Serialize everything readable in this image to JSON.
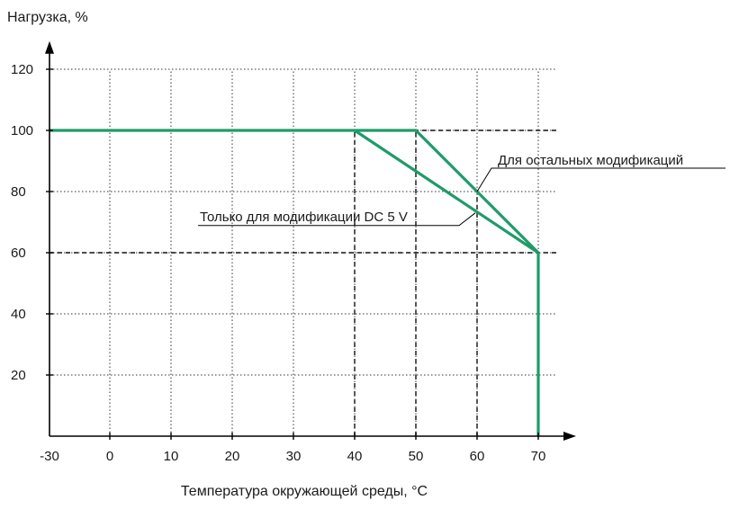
{
  "chart_data": {
    "type": "line",
    "title": "",
    "xlabel": "Температура окружающей среды, °C",
    "ylabel": "Нагрузка, %",
    "xlim": [
      -30,
      75
    ],
    "ylim": [
      0,
      128
    ],
    "x_ticks": [
      -30,
      0,
      10,
      20,
      30,
      40,
      50,
      60,
      70
    ],
    "y_ticks": [
      20,
      40,
      60,
      80,
      100,
      120
    ],
    "grid": true,
    "line_color": "#1f9b6a",
    "series": [
      {
        "name": "Для остальных модификаций",
        "x": [
          -30,
          50,
          70,
          70
        ],
        "y": [
          100,
          100,
          60,
          0
        ]
      },
      {
        "name": "Только для модификации DC 5 V",
        "x": [
          40,
          70
        ],
        "y": [
          100,
          60
        ]
      }
    ],
    "reference_lines": [
      {
        "x": [
          -30,
          73
        ],
        "y": [
          100,
          100
        ]
      },
      {
        "x": [
          -30,
          73
        ],
        "y": [
          60,
          60
        ]
      },
      {
        "x": [
          40,
          40
        ],
        "y": [
          0,
          100
        ]
      },
      {
        "x": [
          50,
          50
        ],
        "y": [
          0,
          100
        ]
      },
      {
        "x": [
          60,
          60
        ],
        "y": [
          0,
          80
        ]
      }
    ],
    "annotations": [
      {
        "text": "Для остальных модификаций",
        "series": 0,
        "point": [
          60,
          80
        ]
      },
      {
        "text": "Только для модификации DC 5 V",
        "series": 1,
        "point": [
          60,
          73
        ]
      }
    ]
  }
}
